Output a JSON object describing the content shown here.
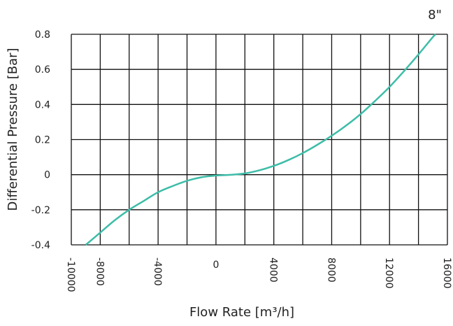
{
  "chart_data": {
    "type": "line",
    "title": "",
    "xlabel": "Flow Rate [m³/h]",
    "ylabel": "Differential Pressure [Bar]",
    "xlim": [
      -10000,
      16000
    ],
    "ylim": [
      -0.4,
      0.8
    ],
    "x_ticks": [
      -10000,
      -8000,
      -4000,
      0,
      4000,
      8000,
      12000,
      16000
    ],
    "x_tick_labels": [
      "-10000",
      "-8000",
      "-4000",
      "0",
      "4000",
      "8000",
      "12000",
      "16000"
    ],
    "y_ticks": [
      0.8,
      0.6,
      0.4,
      0.2,
      0,
      -0.2,
      -0.4
    ],
    "y_tick_labels": [
      "0.8",
      "0.6",
      "0.4",
      "0.2",
      "0",
      "-0.2",
      "-0.4"
    ],
    "grid": true,
    "series_color": "#3dbda8",
    "series": [
      {
        "name": "8\"",
        "x": [
          -9000,
          -8000,
          -7000,
          -6000,
          -5000,
          -4000,
          -3000,
          -2000,
          -1000,
          0,
          1000,
          2000,
          3000,
          4000,
          5000,
          6000,
          7000,
          8000,
          9000,
          10000,
          11000,
          12000,
          13000,
          14000,
          15000,
          15200
        ],
        "y": [
          -0.4,
          -0.33,
          -0.26,
          -0.2,
          -0.15,
          -0.1,
          -0.065,
          -0.035,
          -0.015,
          -0.005,
          -0.001,
          0.007,
          0.025,
          0.05,
          0.083,
          0.123,
          0.17,
          0.222,
          0.28,
          0.345,
          0.42,
          0.5,
          0.59,
          0.685,
          0.785,
          0.8
        ]
      }
    ]
  }
}
